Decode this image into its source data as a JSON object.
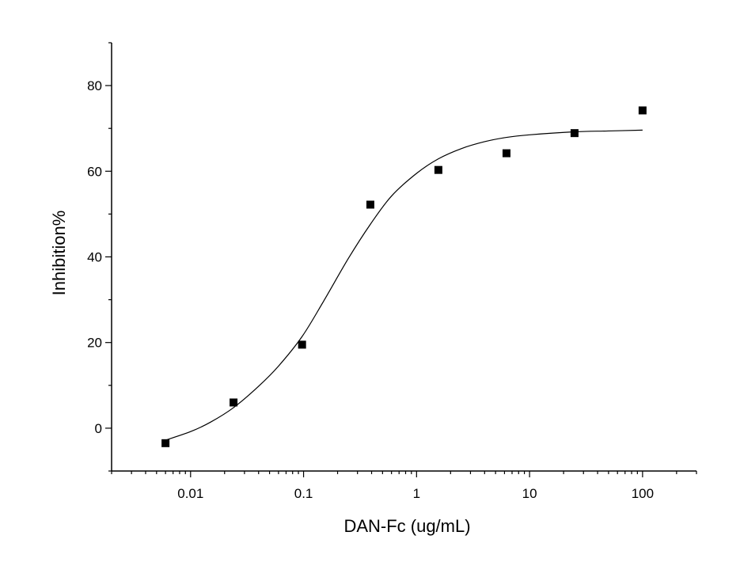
{
  "chart_data": {
    "type": "scatter",
    "title": "",
    "xlabel": "DAN-Fc (ug/mL)",
    "ylabel": "Inhibition%",
    "xscale": "log",
    "xlim": [
      0.002,
      300
    ],
    "ylim": [
      -10,
      90
    ],
    "grid": false,
    "legend": "none",
    "x_ticks": [
      0.01,
      0.1,
      1,
      10,
      100
    ],
    "x_tick_labels": [
      "0.01",
      "0.1",
      "1",
      "10",
      "100"
    ],
    "y_ticks": [
      0,
      20,
      40,
      60,
      80
    ],
    "y_tick_labels": [
      "0",
      "20",
      "40",
      "60",
      "80"
    ],
    "series": [
      {
        "kind": "points",
        "marker": "square",
        "color": "#000000",
        "x": [
          0.006,
          0.024,
          0.097,
          0.39,
          1.56,
          6.25,
          25,
          100
        ],
        "y": [
          -3.5,
          6,
          19.5,
          52.2,
          60.3,
          64.2,
          68.9,
          74.2
        ]
      },
      {
        "kind": "fit",
        "model": "sigmoidal dose-response fit",
        "color": "#000000",
        "x": [
          0.006,
          0.01,
          0.015,
          0.024,
          0.04,
          0.06,
          0.097,
          0.15,
          0.25,
          0.39,
          0.6,
          1.0,
          1.56,
          2.5,
          4,
          6.25,
          10,
          25,
          50,
          100
        ],
        "y": [
          -2.8,
          -0.8,
          1.4,
          4.8,
          9.8,
          14.5,
          21.4,
          29.6,
          39.7,
          47.6,
          54.2,
          59.5,
          62.9,
          65.3,
          66.9,
          67.9,
          68.5,
          69.2,
          69.4,
          69.6
        ]
      }
    ]
  }
}
